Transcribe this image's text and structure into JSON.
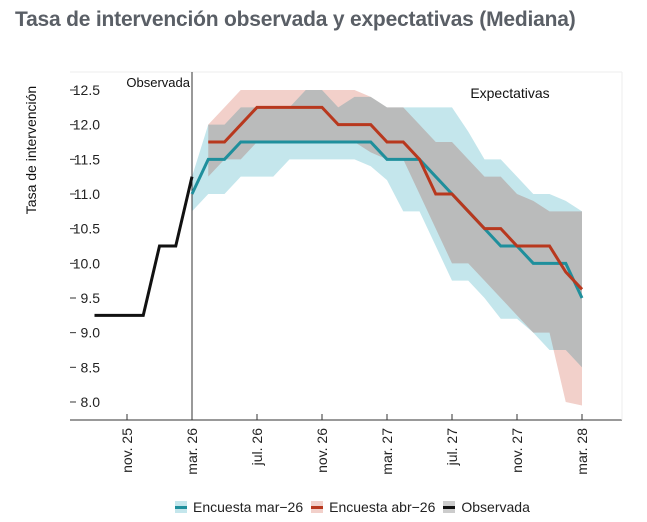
{
  "title": "Tasa de intervención observada y expectativas (Mediana)",
  "chart_data": {
    "type": "line",
    "title": "Tasa de intervención observada y expectativas (Mediana)",
    "ylabel": "Tasa de intervención",
    "xlabel": "",
    "ylim": [
      7.8,
      12.7
    ],
    "yticks": [
      8.0,
      8.5,
      9.0,
      9.5,
      10.0,
      10.5,
      11.0,
      11.5,
      12.0,
      12.5
    ],
    "xticks": [
      {
        "date": "2025-11",
        "label": "nov. 25"
      },
      {
        "date": "2026-03",
        "label": "mar. 26"
      },
      {
        "date": "2026-07",
        "label": "jul. 26"
      },
      {
        "date": "2026-11",
        "label": "nov. 26"
      },
      {
        "date": "2027-03",
        "label": "mar. 27"
      },
      {
        "date": "2027-07",
        "label": "jul. 27"
      },
      {
        "date": "2027-11",
        "label": "nov. 27"
      },
      {
        "date": "2028-03",
        "label": "mar. 28"
      }
    ],
    "annotations": {
      "observed": "Observada",
      "expectations": "Expectativas",
      "divider_date": "2026-03"
    },
    "grid": false,
    "legend_position": "bottom",
    "series": [
      {
        "name": "Encuesta mar−26",
        "color": "#1f8f9c",
        "band_color": "#c4e6ec",
        "start": "2026-03",
        "values": [
          11.0,
          11.5,
          11.5,
          11.75,
          11.75,
          11.75,
          11.75,
          11.75,
          11.75,
          11.75,
          11.75,
          11.75,
          11.5,
          11.5,
          11.5,
          11.25,
          11.0,
          10.75,
          10.5,
          10.25,
          10.25,
          10.0,
          10.0,
          10.0,
          9.5
        ],
        "lower": [
          10.75,
          11.0,
          11.0,
          11.25,
          11.25,
          11.25,
          11.5,
          11.5,
          11.5,
          11.5,
          11.5,
          11.4,
          11.2,
          10.75,
          10.75,
          10.25,
          9.75,
          9.75,
          9.5,
          9.2,
          9.2,
          9.0,
          8.75,
          8.75,
          8.5
        ],
        "upper": [
          11.25,
          12.0,
          12.0,
          12.25,
          12.25,
          12.25,
          12.25,
          12.5,
          12.5,
          12.25,
          12.4,
          12.4,
          12.25,
          12.25,
          12.25,
          12.25,
          12.25,
          11.9,
          11.5,
          11.5,
          11.25,
          11.0,
          11.0,
          10.9,
          10.75
        ]
      },
      {
        "name": "Encuesta abr−26",
        "color": "#b8381e",
        "band_color": "#f2d0ca",
        "start": "2026-04",
        "values": [
          11.75,
          11.75,
          12.0,
          12.25,
          12.25,
          12.25,
          12.25,
          12.25,
          12.0,
          12.0,
          12.0,
          11.75,
          11.75,
          11.5,
          11.0,
          11.0,
          10.75,
          10.5,
          10.5,
          10.25,
          10.25,
          10.25,
          9.875,
          9.625
        ],
        "lower": [
          11.25,
          11.5,
          11.5,
          11.75,
          11.75,
          11.75,
          11.75,
          11.75,
          11.75,
          11.75,
          11.6,
          11.5,
          11.5,
          11.0,
          10.5,
          10.0,
          10.0,
          9.75,
          9.5,
          9.25,
          9.0,
          9.0,
          8.0,
          7.95
        ],
        "upper": [
          12.0,
          12.25,
          12.5,
          12.5,
          12.5,
          12.5,
          12.5,
          12.5,
          12.5,
          12.5,
          12.4,
          12.25,
          12.25,
          12.0,
          11.75,
          11.75,
          11.5,
          11.25,
          11.25,
          11.0,
          10.9,
          10.75,
          10.75,
          10.75
        ]
      },
      {
        "name": "Observada",
        "color": "#111111",
        "start": "2025-09",
        "values": [
          9.25,
          9.25,
          9.25,
          9.25,
          10.25,
          10.25,
          11.25
        ]
      }
    ]
  }
}
